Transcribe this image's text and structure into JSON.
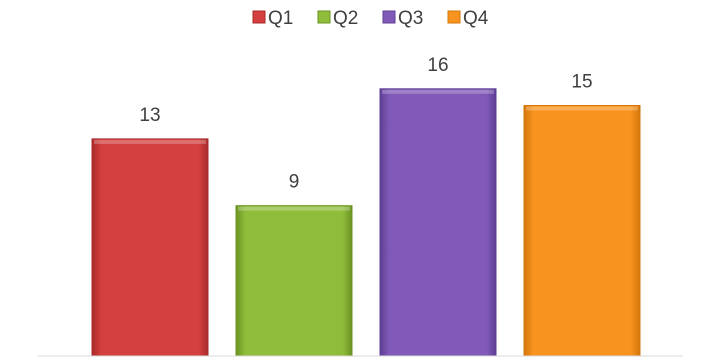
{
  "chart_data": {
    "type": "bar",
    "categories": [
      "Q1",
      "Q2",
      "Q3",
      "Q4"
    ],
    "values": [
      13,
      9,
      16,
      15
    ],
    "colors": [
      "#d43f3f",
      "#8fbc3a",
      "#8159b8",
      "#f7931e"
    ],
    "edge_colors": [
      "#a92a2a",
      "#6b9322",
      "#5e3e94",
      "#d4760a"
    ],
    "data_labels": [
      "13",
      "9",
      "16",
      "15"
    ],
    "title": "",
    "xlabel": "",
    "ylabel": "",
    "ylim": [
      0,
      20
    ],
    "legend_position": "top",
    "grid": false
  }
}
